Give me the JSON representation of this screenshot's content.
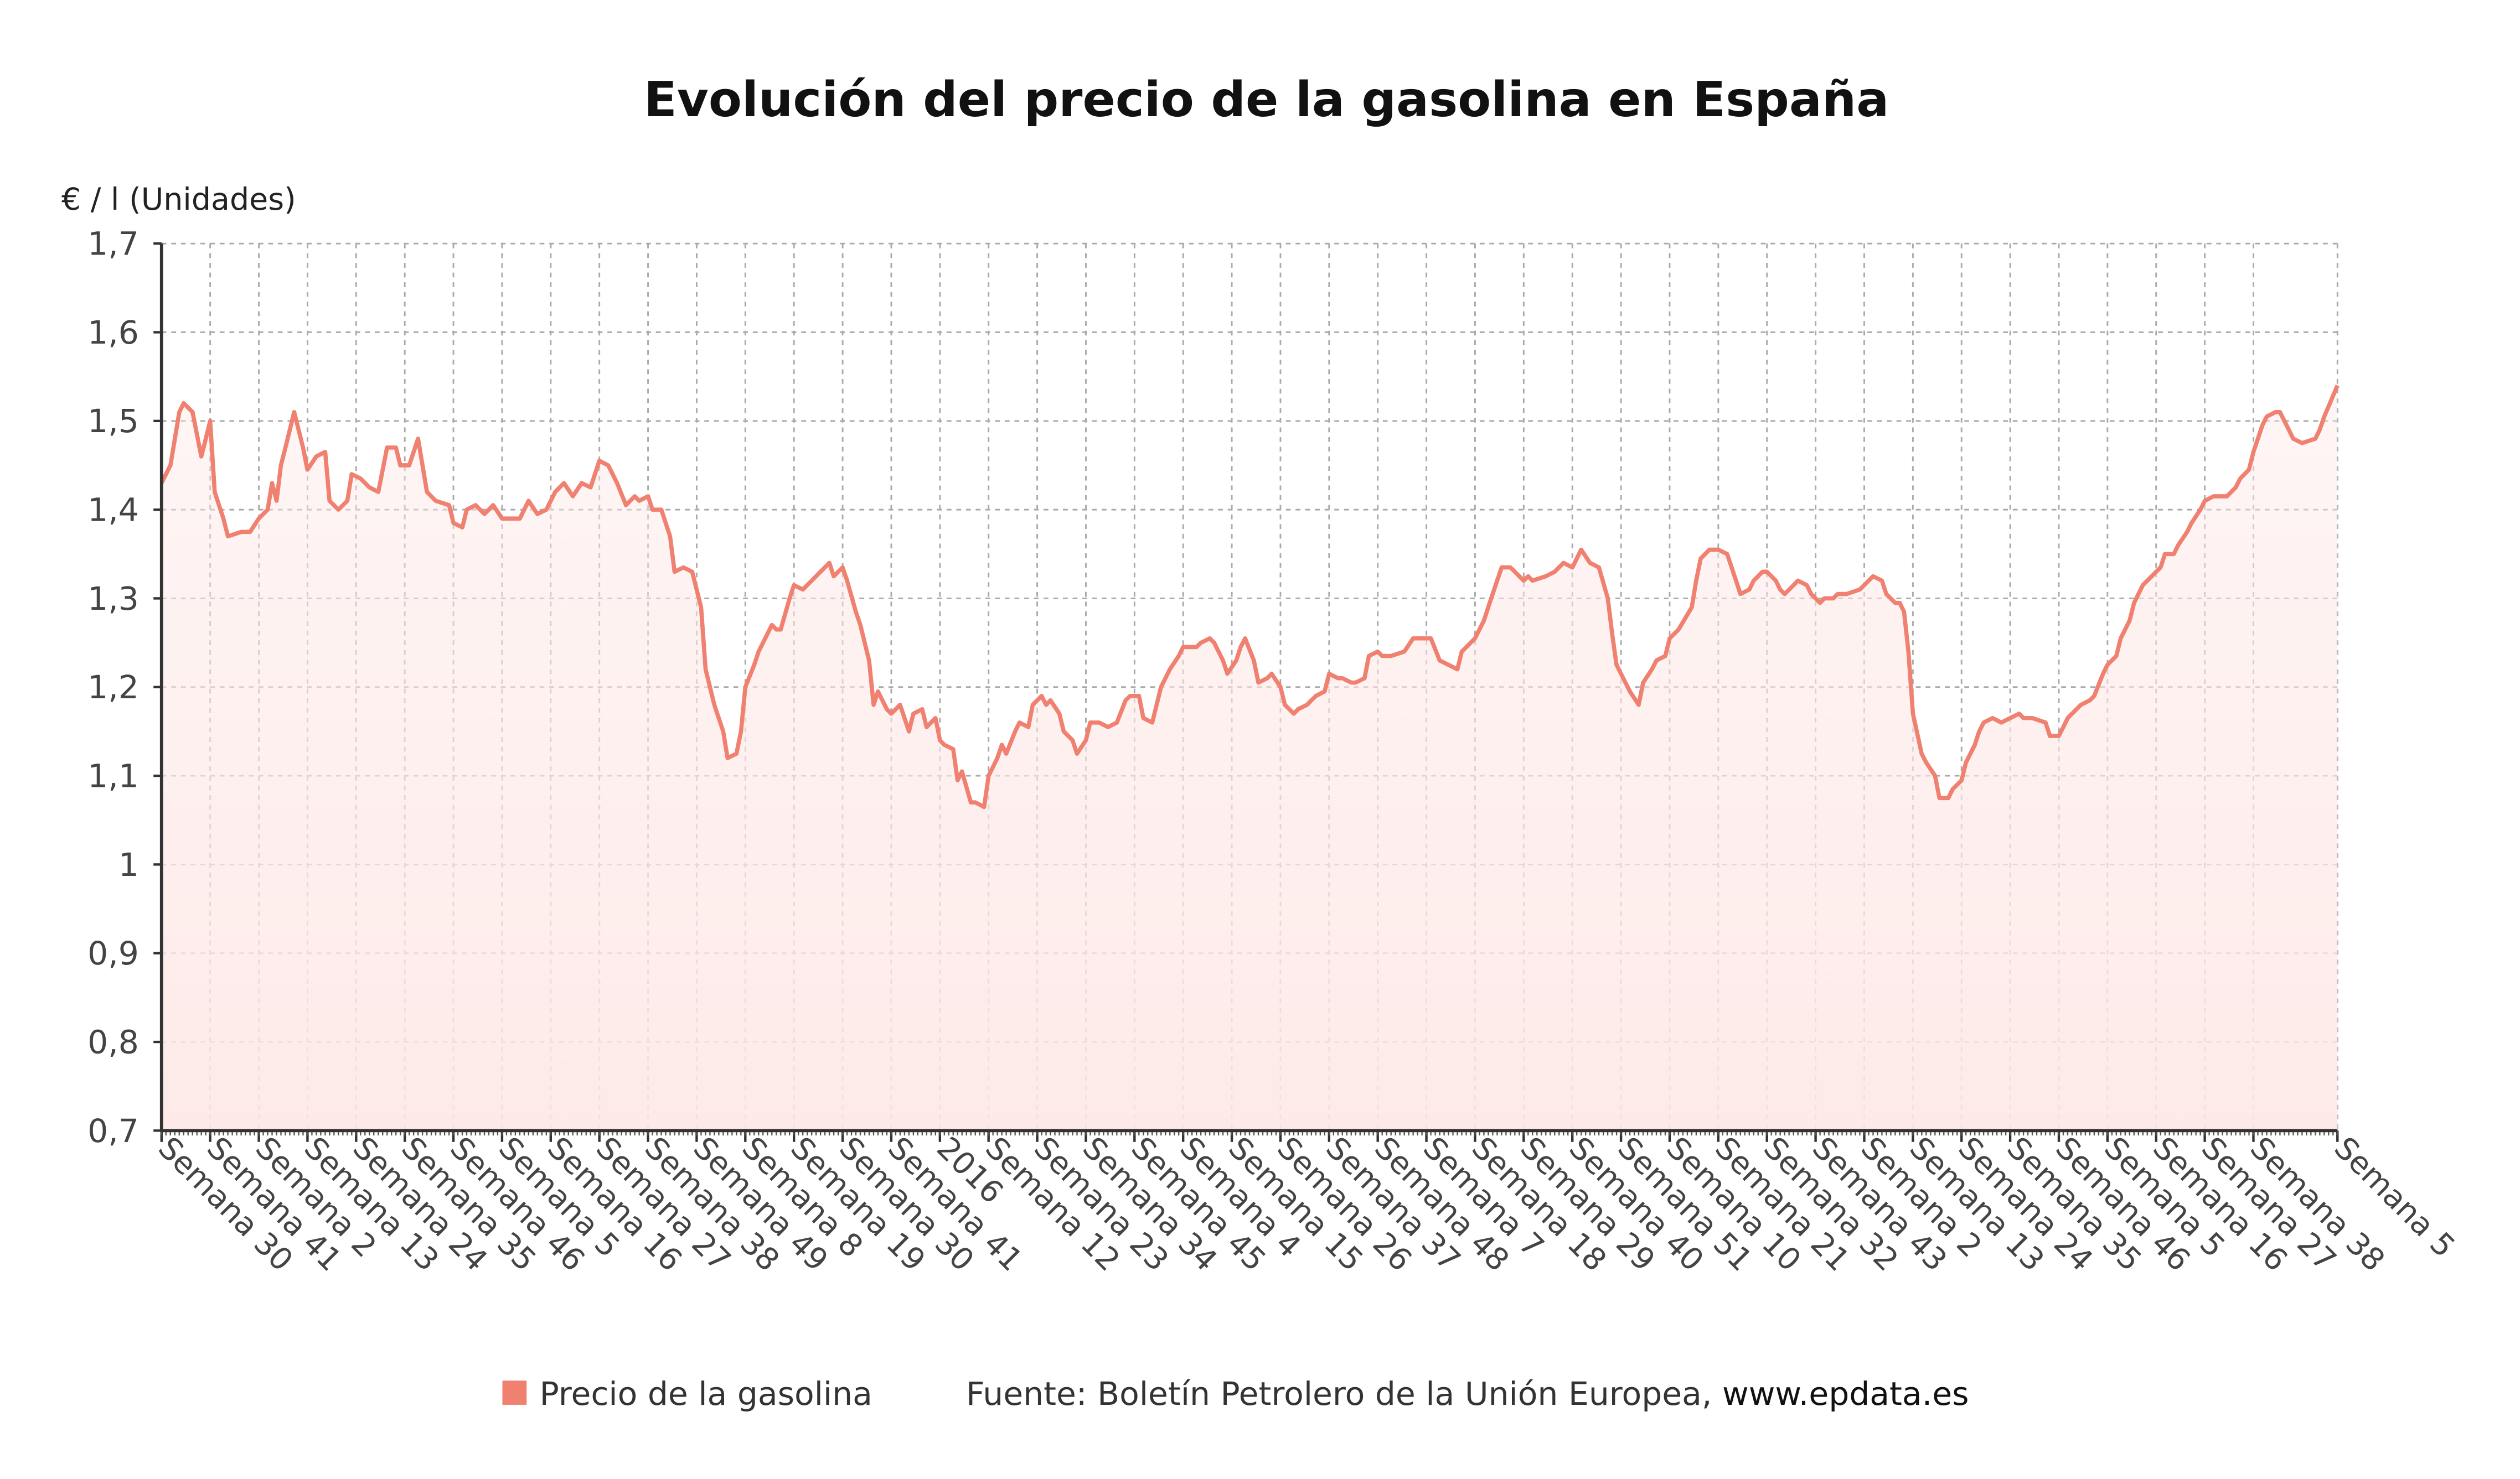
{
  "chart_data": {
    "type": "area",
    "title": "Evolución del precio de la gasolina en España",
    "ylabel": "€ / l (Unidades)",
    "xlabel": "",
    "ylim": [
      0.7,
      1.7
    ],
    "yticks": [
      0.7,
      0.8,
      0.9,
      1.0,
      1.1,
      1.2,
      1.3,
      1.4,
      1.5,
      1.6,
      1.7
    ],
    "ytick_labels": [
      "0,7",
      "0,8",
      "0,9",
      "1",
      "1,1",
      "1,2",
      "1,3",
      "1,4",
      "1,5",
      "1,6",
      "1,7"
    ],
    "x_unit": "weeks since first observation",
    "xlim": [
      0,
      492
    ],
    "xtick_weeks": [
      0,
      11,
      22,
      33,
      44,
      55,
      66,
      77,
      88,
      99,
      110,
      121,
      132,
      143,
      154,
      165,
      176,
      187,
      198,
      209,
      220,
      231,
      242,
      253,
      264,
      275,
      286,
      297,
      308,
      319,
      330,
      341,
      352,
      363,
      374,
      385,
      396,
      407,
      418,
      429,
      440,
      451,
      462,
      473,
      492
    ],
    "xtick_labels": [
      "Semana 30",
      "Semana 41",
      "Semana 2",
      "Semana 13",
      "Semana 24",
      "Semana 35",
      "Semana 46",
      "Semana 5",
      "Semana 16",
      "Semana 27",
      "Semana 38",
      "Semana 49",
      "Semana 8",
      "Semana 19",
      "Semana 30",
      "Semana 41",
      "2016",
      "Semana 12",
      "Semana 23",
      "Semana 34",
      "Semana 45",
      "Semana 4",
      "Semana 15",
      "Semana 26",
      "Semana 37",
      "Semana 48",
      "Semana 7",
      "Semana 18",
      "Semana 29",
      "Semana 40",
      "Semana 51",
      "Semana 10",
      "Semana 21",
      "Semana 32",
      "Semana 43",
      "Semana 2",
      "Semana 13",
      "Semana 24",
      "Semana 35",
      "Semana 46",
      "Semana 5",
      "Semana 16",
      "Semana 27",
      "Semana 38",
      "Semana 5"
    ],
    "grid": true,
    "legend_position": "bottom",
    "series": [
      {
        "name": "Precio de la gasolina",
        "color": "#f08070",
        "x": [
          0,
          2,
          4,
          5,
          7,
          9,
          10,
          11,
          12,
          14,
          15,
          18,
          20,
          22,
          24,
          25,
          26,
          27,
          28,
          30,
          32,
          33,
          35,
          37,
          38,
          40,
          42,
          43,
          45,
          47,
          49,
          51,
          53,
          54,
          56,
          58,
          60,
          62,
          65,
          66,
          68,
          69,
          71,
          73,
          75,
          77,
          79,
          81,
          83,
          85,
          87,
          89,
          91,
          93,
          95,
          97,
          99,
          101,
          103,
          105,
          107,
          108,
          110,
          111,
          113,
          115,
          116,
          118,
          120,
          122,
          123,
          125,
          127,
          128,
          130,
          131,
          132,
          134,
          135,
          137,
          138,
          139,
          140,
          142,
          143,
          145,
          147,
          149,
          151,
          152,
          154,
          155,
          157,
          158,
          160,
          161,
          162,
          164,
          165,
          167,
          169,
          170,
          172,
          173,
          175,
          176,
          177,
          179,
          180,
          181,
          183,
          184,
          186,
          187,
          189,
          190,
          191,
          193,
          194,
          196,
          197,
          199,
          200,
          201,
          203,
          204,
          206,
          207,
          209,
          210,
          212,
          214,
          216,
          218,
          219,
          221,
          222,
          224,
          225,
          226,
          228,
          230,
          231,
          233,
          234,
          235,
          237,
          238,
          240,
          241,
          243,
          244,
          245,
          247,
          248,
          250,
          251,
          253,
          254,
          256,
          257,
          259,
          260,
          261,
          263,
          264,
          266,
          267,
          269,
          270,
          272,
          273,
          275,
          276,
          278,
          281,
          283,
          285,
          287,
          289,
          291,
          293,
          294,
          297,
          299,
          300,
          302,
          303,
          305,
          306,
          308,
          309,
          310,
          313,
          315,
          317,
          319,
          321,
          323,
          325,
          327,
          328,
          329,
          331,
          332,
          334,
          335,
          337,
          338,
          340,
          341,
          343,
          346,
          347,
          348,
          350,
          352,
          354,
          356,
          357,
          359,
          360,
          362,
          363,
          365,
          366,
          367,
          369,
          370,
          372,
          373,
          375,
          376,
          378,
          379,
          381,
          384,
          386,
          387,
          389,
          390,
          392,
          393,
          394,
          395,
          396,
          398,
          399,
          401,
          402,
          404,
          405,
          407,
          408,
          410,
          411,
          412,
          414,
          416,
          418,
          420,
          421,
          423,
          426,
          427,
          429,
          430,
          431,
          433,
          434,
          436,
          437,
          439,
          440,
          442,
          443,
          445,
          446,
          448,
          449,
          450,
          452,
          453,
          455,
          456,
          458,
          459,
          461,
          462,
          464,
          465,
          467,
          469,
          470,
          472,
          473,
          475,
          476,
          478,
          479,
          481,
          482,
          484,
          487,
          488,
          489,
          492
        ],
        "y": [
          1.43,
          1.45,
          1.51,
          1.52,
          1.51,
          1.46,
          1.48,
          1.5,
          1.42,
          1.39,
          1.37,
          1.375,
          1.375,
          1.39,
          1.4,
          1.43,
          1.41,
          1.45,
          1.47,
          1.51,
          1.47,
          1.445,
          1.46,
          1.465,
          1.41,
          1.4,
          1.41,
          1.44,
          1.435,
          1.425,
          1.42,
          1.47,
          1.47,
          1.45,
          1.45,
          1.48,
          1.42,
          1.41,
          1.405,
          1.385,
          1.38,
          1.4,
          1.405,
          1.395,
          1.405,
          1.39,
          1.39,
          1.39,
          1.41,
          1.395,
          1.4,
          1.42,
          1.43,
          1.415,
          1.43,
          1.425,
          1.455,
          1.45,
          1.43,
          1.405,
          1.415,
          1.41,
          1.415,
          1.4,
          1.4,
          1.37,
          1.33,
          1.335,
          1.33,
          1.29,
          1.22,
          1.18,
          1.15,
          1.12,
          1.125,
          1.15,
          1.2,
          1.225,
          1.24,
          1.26,
          1.27,
          1.265,
          1.265,
          1.3,
          1.315,
          1.31,
          1.32,
          1.33,
          1.34,
          1.325,
          1.335,
          1.32,
          1.285,
          1.27,
          1.23,
          1.18,
          1.195,
          1.175,
          1.17,
          1.18,
          1.15,
          1.17,
          1.175,
          1.155,
          1.165,
          1.14,
          1.135,
          1.13,
          1.095,
          1.105,
          1.07,
          1.07,
          1.065,
          1.1,
          1.12,
          1.135,
          1.125,
          1.15,
          1.16,
          1.155,
          1.18,
          1.19,
          1.18,
          1.185,
          1.17,
          1.15,
          1.14,
          1.125,
          1.14,
          1.16,
          1.16,
          1.155,
          1.16,
          1.185,
          1.19,
          1.19,
          1.165,
          1.16,
          1.18,
          1.2,
          1.22,
          1.235,
          1.245,
          1.245,
          1.245,
          1.25,
          1.255,
          1.25,
          1.23,
          1.215,
          1.23,
          1.245,
          1.255,
          1.23,
          1.205,
          1.21,
          1.215,
          1.2,
          1.18,
          1.17,
          1.175,
          1.18,
          1.185,
          1.19,
          1.195,
          1.215,
          1.21,
          1.21,
          1.205,
          1.205,
          1.21,
          1.235,
          1.24,
          1.235,
          1.235,
          1.24,
          1.255,
          1.255,
          1.255,
          1.23,
          1.225,
          1.22,
          1.24,
          1.255,
          1.275,
          1.29,
          1.32,
          1.335,
          1.335,
          1.33,
          1.32,
          1.325,
          1.32,
          1.325,
          1.33,
          1.34,
          1.335,
          1.355,
          1.34,
          1.335,
          1.3,
          1.26,
          1.225,
          1.205,
          1.195,
          1.18,
          1.205,
          1.22,
          1.23,
          1.235,
          1.255,
          1.265,
          1.29,
          1.32,
          1.345,
          1.355,
          1.355,
          1.35,
          1.32,
          1.305,
          1.31,
          1.32,
          1.33,
          1.33,
          1.32,
          1.31,
          1.305,
          1.315,
          1.32,
          1.315,
          1.305,
          1.295,
          1.3,
          1.3,
          1.305,
          1.305,
          1.31,
          1.32,
          1.325,
          1.32,
          1.305,
          1.295,
          1.295,
          1.285,
          1.24,
          1.17,
          1.125,
          1.115,
          1.1,
          1.075,
          1.075,
          1.085,
          1.095,
          1.115,
          1.135,
          1.15,
          1.16,
          1.165,
          1.16,
          1.165,
          1.17,
          1.165,
          1.165,
          1.16,
          1.145,
          1.145,
          1.155,
          1.165,
          1.175,
          1.18,
          1.185,
          1.19,
          1.215,
          1.225,
          1.235,
          1.255,
          1.275,
          1.295,
          1.315,
          1.32,
          1.325,
          1.335,
          1.35,
          1.35,
          1.36,
          1.375,
          1.385,
          1.4,
          1.41,
          1.415,
          1.415,
          1.415,
          1.425,
          1.435,
          1.445,
          1.465,
          1.495,
          1.505,
          1.51,
          1.51,
          1.49,
          1.48,
          1.475,
          1.48,
          1.49,
          1.505,
          1.54
        ]
      }
    ]
  },
  "legend": {
    "series_label": "Precio de la gasolina",
    "source_label": "Fuente: Boletín Petrolero de la Unión Europea, ",
    "source_link": "www.epdata.es"
  }
}
